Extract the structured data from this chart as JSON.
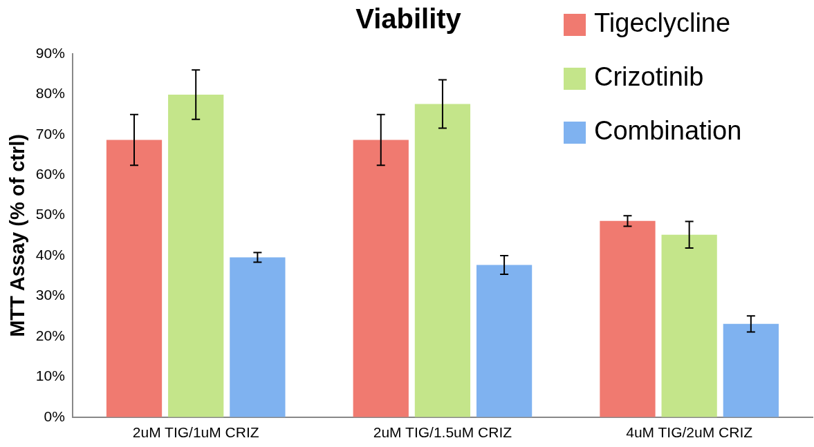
{
  "chart_data": {
    "type": "bar",
    "title": "Viability",
    "ylabel": "MTT Assay (% of ctrl)",
    "categories": [
      "2uM TIG/1uM CRIZ",
      "2uM TIG/1.5uM CRIZ",
      "4uM TIG/2uM CRIZ"
    ],
    "series": [
      {
        "name": "Tigeclycline",
        "color": "#f07a70",
        "values": [
          68.7,
          68.7,
          48.6
        ],
        "errors": [
          6.3,
          6.3,
          1.3
        ]
      },
      {
        "name": "Crizotinib",
        "color": "#c4e58a",
        "values": [
          79.9,
          77.6,
          45.2
        ],
        "errors": [
          6.1,
          6.0,
          3.3
        ]
      },
      {
        "name": "Combination",
        "color": "#7fb2f0",
        "values": [
          39.6,
          37.7,
          23.1
        ],
        "errors": [
          1.2,
          2.3,
          2.0
        ]
      }
    ],
    "ylim": [
      0,
      90
    ],
    "yticks": [
      {
        "value": 0,
        "label": "0%"
      },
      {
        "value": 10,
        "label": "10%"
      },
      {
        "value": 20,
        "label": "20%"
      },
      {
        "value": 30,
        "label": "30%"
      },
      {
        "value": 40,
        "label": "40%"
      },
      {
        "value": 50,
        "label": "50%"
      },
      {
        "value": 60,
        "label": "60%"
      },
      {
        "value": 70,
        "label": "70%"
      },
      {
        "value": 80,
        "label": "80%"
      },
      {
        "value": 90,
        "label": "90%"
      }
    ],
    "grid": false,
    "legend": "top right"
  }
}
